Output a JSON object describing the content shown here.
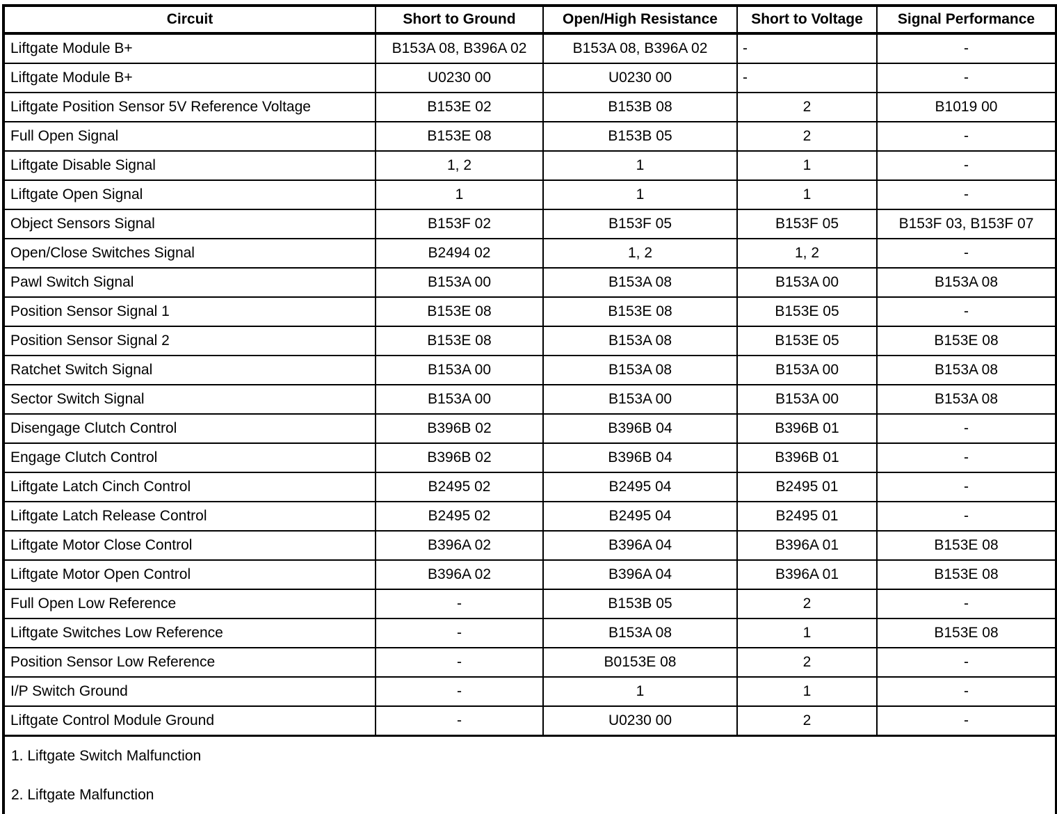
{
  "table": {
    "columns": [
      "Circuit",
      "Short to Ground",
      "Open/High Resistance",
      "Short to Voltage",
      "Signal Performance"
    ],
    "rows": [
      {
        "cells": [
          "Liftgate Module B+",
          "B153A 08, B396A 02",
          "B153A 08, B396A 02",
          "-",
          "-"
        ],
        "align": {
          "3": "left"
        }
      },
      {
        "cells": [
          "Liftgate Module B+",
          "U0230 00",
          "U0230 00",
          "-",
          "-"
        ],
        "align": {
          "3": "left"
        }
      },
      {
        "cells": [
          "Liftgate Position Sensor 5V Reference Voltage",
          "B153E 02",
          "B153B 08",
          "2",
          "B1019 00"
        ]
      },
      {
        "cells": [
          "Full Open Signal",
          "B153E 08",
          "B153B 05",
          "2",
          "-"
        ]
      },
      {
        "cells": [
          "Liftgate Disable Signal",
          "1, 2",
          "1",
          "1",
          "-"
        ]
      },
      {
        "cells": [
          "Liftgate Open Signal",
          "1",
          "1",
          "1",
          "-"
        ]
      },
      {
        "cells": [
          "Object Sensors Signal",
          "B153F 02",
          "B153F 05",
          "B153F 05",
          "B153F 03, B153F 07"
        ]
      },
      {
        "cells": [
          "Open/Close Switches Signal",
          "B2494 02",
          "1, 2",
          "1, 2",
          "-"
        ]
      },
      {
        "cells": [
          "Pawl Switch Signal",
          "B153A 00",
          "B153A 08",
          "B153A 00",
          "B153A 08"
        ]
      },
      {
        "cells": [
          "Position Sensor Signal 1",
          "B153E 08",
          "B153E 08",
          "B153E 05",
          "-"
        ]
      },
      {
        "cells": [
          "Position Sensor Signal 2",
          "B153E 08",
          "B153A 08",
          "B153E 05",
          "B153E 08"
        ]
      },
      {
        "cells": [
          "Ratchet Switch Signal",
          "B153A 00",
          "B153A 08",
          "B153A 00",
          "B153A 08"
        ]
      },
      {
        "cells": [
          "Sector Switch Signal",
          "B153A 00",
          "B153A 00",
          "B153A 00",
          "B153A 08"
        ]
      },
      {
        "cells": [
          "Disengage Clutch Control",
          "B396B 02",
          "B396B 04",
          "B396B 01",
          "-"
        ]
      },
      {
        "cells": [
          "Engage Clutch Control",
          "B396B 02",
          "B396B 04",
          "B396B 01",
          "-"
        ]
      },
      {
        "cells": [
          "Liftgate Latch Cinch Control",
          "B2495 02",
          "B2495 04",
          "B2495 01",
          "-"
        ]
      },
      {
        "cells": [
          "Liftgate Latch Release Control",
          "B2495 02",
          "B2495 04",
          "B2495 01",
          "-"
        ]
      },
      {
        "cells": [
          "Liftgate Motor Close Control",
          "B396A 02",
          "B396A 04",
          "B396A 01",
          "B153E 08"
        ]
      },
      {
        "cells": [
          "Liftgate Motor Open Control",
          "B396A 02",
          "B396A 04",
          "B396A 01",
          "B153E 08"
        ]
      },
      {
        "cells": [
          "Full Open Low Reference",
          "-",
          "B153B 05",
          "2",
          "-"
        ]
      },
      {
        "cells": [
          "Liftgate Switches Low Reference",
          "-",
          "B153A 08",
          "1",
          "B153E 08"
        ]
      },
      {
        "cells": [
          "Position Sensor Low Reference",
          "-",
          "B0153E 08",
          "2",
          "-"
        ]
      },
      {
        "cells": [
          "I/P Switch Ground",
          "-",
          "1",
          "1",
          "-"
        ]
      },
      {
        "cells": [
          "Liftgate Control Module Ground",
          "-",
          "U0230 00",
          "2",
          "-"
        ]
      }
    ],
    "footnotes": [
      "1. Liftgate Switch Malfunction",
      "2. Liftgate Malfunction"
    ]
  },
  "colors": {
    "border": "#000000",
    "text": "#000000",
    "background": "#ffffff"
  }
}
